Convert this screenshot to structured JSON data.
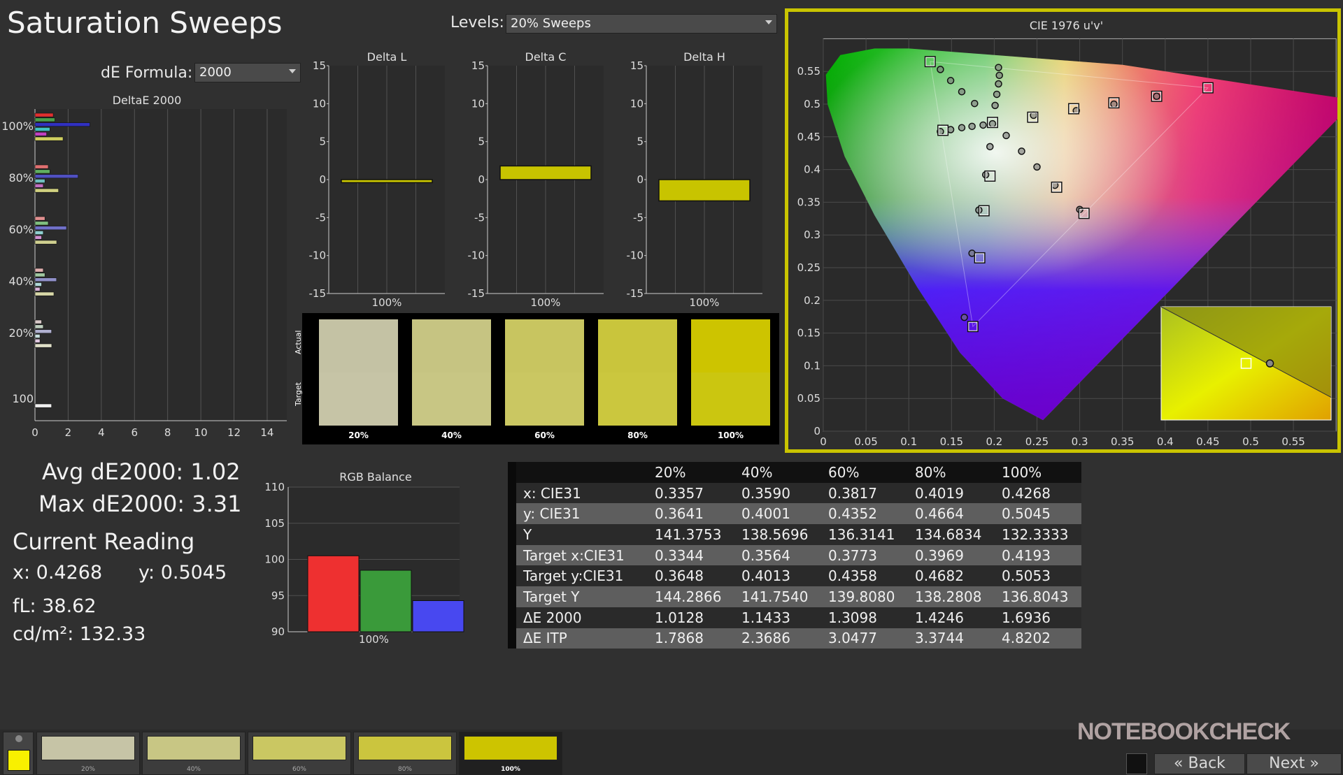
{
  "header": {
    "title": "Saturation Sweeps",
    "levels_label": "Levels:",
    "levels_value": "20% Sweeps",
    "formula_label": "dE Formula:",
    "formula_value": "2000"
  },
  "deltae_chart": {
    "title": "DeltaE 2000",
    "xticks": [
      "0",
      "2",
      "4",
      "6",
      "8",
      "10",
      "12",
      "14"
    ],
    "ylabels": [
      "100%",
      "80%",
      "60%",
      "40%",
      "20%",
      "100"
    ],
    "groups": [
      {
        "label": "100%",
        "bars": [
          {
            "color": "#e03030",
            "v": 1.1
          },
          {
            "color": "#4aa04a",
            "v": 1.2
          },
          {
            "color": "#3030c0",
            "v": 3.31
          },
          {
            "color": "#40c0c0",
            "v": 0.9
          },
          {
            "color": "#c040c0",
            "v": 0.7
          },
          {
            "color": "#d0d060",
            "v": 1.69
          }
        ]
      },
      {
        "label": "80%",
        "bars": [
          {
            "color": "#e07070",
            "v": 0.8
          },
          {
            "color": "#60b060",
            "v": 0.9
          },
          {
            "color": "#5050c0",
            "v": 2.6
          },
          {
            "color": "#70c0c0",
            "v": 0.6
          },
          {
            "color": "#c070c0",
            "v": 0.5
          },
          {
            "color": "#d0d080",
            "v": 1.42
          }
        ]
      },
      {
        "label": "60%",
        "bars": [
          {
            "color": "#e09090",
            "v": 0.6
          },
          {
            "color": "#80c080",
            "v": 0.8
          },
          {
            "color": "#7070c8",
            "v": 1.9
          },
          {
            "color": "#90d0d0",
            "v": 0.5
          },
          {
            "color": "#d090d0",
            "v": 0.4
          },
          {
            "color": "#d0d090",
            "v": 1.31
          }
        ]
      },
      {
        "label": "40%",
        "bars": [
          {
            "color": "#e0b0b0",
            "v": 0.5
          },
          {
            "color": "#a0c8a0",
            "v": 0.6
          },
          {
            "color": "#9090c8",
            "v": 1.3
          },
          {
            "color": "#b0d8d8",
            "v": 0.4
          },
          {
            "color": "#d8b0d8",
            "v": 0.3
          },
          {
            "color": "#d8d8a8",
            "v": 1.14
          }
        ]
      },
      {
        "label": "20%",
        "bars": [
          {
            "color": "#d8c8c8",
            "v": 0.4
          },
          {
            "color": "#c0d0c0",
            "v": 0.5
          },
          {
            "color": "#b0b0d0",
            "v": 1.0
          },
          {
            "color": "#c8e0e0",
            "v": 0.3
          },
          {
            "color": "#e0c8e0",
            "v": 0.3
          },
          {
            "color": "#e0e0c8",
            "v": 1.01
          }
        ]
      },
      {
        "label": "100",
        "bars": [
          {
            "color": "#f0f0f0",
            "v": 1.0
          }
        ]
      }
    ]
  },
  "stats": {
    "avg": "Avg dE2000: 1.02",
    "max": "Max dE2000: 3.31"
  },
  "current_reading": {
    "title": "Current Reading",
    "x": "x: 0.4268",
    "y": "y: 0.5045",
    "fl": "fL: 38.62",
    "cdm2": "cd/m²: 132.33"
  },
  "delta_charts": [
    {
      "title": "Delta L",
      "category": "100%",
      "value": -0.4,
      "yticks": [
        "15",
        "10",
        "5",
        "0",
        "-5",
        "-10",
        "-15"
      ]
    },
    {
      "title": "Delta C",
      "category": "100%",
      "value": 1.8,
      "yticks": [
        "15",
        "10",
        "5",
        "0",
        "-5",
        "-10",
        "-15"
      ]
    },
    {
      "title": "Delta H",
      "category": "100%",
      "value": -2.8,
      "yticks": [
        "15",
        "10",
        "5",
        "0",
        "-5",
        "-10",
        "-15"
      ]
    }
  ],
  "swatches": {
    "actual_label": "Actual",
    "target_label": "Target",
    "items": [
      {
        "label": "20%",
        "actual": "#c4c2a4",
        "target": "#c6c4a6"
      },
      {
        "label": "40%",
        "actual": "#c6c482",
        "target": "#c8c684"
      },
      {
        "label": "60%",
        "actual": "#c8c560",
        "target": "#cac762"
      },
      {
        "label": "80%",
        "actual": "#c9c53c",
        "target": "#cbc73e"
      },
      {
        "label": "100%",
        "actual": "#cdc400",
        "target": "#cbc610"
      }
    ]
  },
  "rgb_balance": {
    "title": "RGB Balance",
    "category": "100%",
    "yticks": [
      "110",
      "105",
      "100",
      "95",
      "90"
    ],
    "bars": [
      {
        "color": "#ee3030",
        "v": 100.5
      },
      {
        "color": "#3a9a3a",
        "v": 98.5
      },
      {
        "color": "#4848f0",
        "v": 94.3
      }
    ]
  },
  "table": {
    "headers": [
      "20%",
      "40%",
      "60%",
      "80%",
      "100%"
    ],
    "rows": [
      {
        "label": "x: CIE31",
        "values": [
          "0.3357",
          "0.3590",
          "0.3817",
          "0.4019",
          "0.4268"
        ]
      },
      {
        "label": "y: CIE31",
        "values": [
          "0.3641",
          "0.4001",
          "0.4352",
          "0.4664",
          "0.5045"
        ]
      },
      {
        "label": "Y",
        "values": [
          "141.3753",
          "138.5696",
          "136.3141",
          "134.6834",
          "132.3333"
        ]
      },
      {
        "label": "Target x:CIE31",
        "values": [
          "0.3344",
          "0.3564",
          "0.3773",
          "0.3969",
          "0.4193"
        ]
      },
      {
        "label": "Target y:CIE31",
        "values": [
          "0.3648",
          "0.4013",
          "0.4358",
          "0.4682",
          "0.5053"
        ]
      },
      {
        "label": "Target Y",
        "values": [
          "144.2866",
          "141.7540",
          "139.8080",
          "138.2808",
          "136.8043"
        ]
      },
      {
        "label": "ΔE 2000",
        "values": [
          "1.0128",
          "1.1433",
          "1.3098",
          "1.4246",
          "1.6936"
        ]
      },
      {
        "label": "ΔE ITP",
        "values": [
          "1.7868",
          "2.3686",
          "3.0477",
          "3.3744",
          "4.8202"
        ]
      }
    ]
  },
  "cie": {
    "title": "CIE 1976 u'v'",
    "xticks": [
      "0",
      "0.05",
      "0.1",
      "0.15",
      "0.2",
      "0.25",
      "0.3",
      "0.35",
      "0.4",
      "0.45",
      "0.5",
      "0.55"
    ],
    "yticks": [
      "0",
      "0.05",
      "0.1",
      "0.15",
      "0.2",
      "0.25",
      "0.3",
      "0.35",
      "0.4",
      "0.45",
      "0.5",
      "0.55"
    ],
    "targets": [
      [
        0.125,
        0.565
      ],
      [
        0.45,
        0.525
      ],
      [
        0.175,
        0.16
      ],
      [
        0.198,
        0.472
      ],
      [
        0.195,
        0.39
      ],
      [
        0.188,
        0.337
      ],
      [
        0.183,
        0.265
      ],
      [
        0.245,
        0.48
      ],
      [
        0.293,
        0.493
      ],
      [
        0.34,
        0.502
      ],
      [
        0.39,
        0.512
      ],
      [
        0.273,
        0.373
      ],
      [
        0.305,
        0.333
      ],
      [
        0.14,
        0.46
      ]
    ],
    "measured": [
      [
        0.137,
        0.553
      ],
      [
        0.149,
        0.536
      ],
      [
        0.162,
        0.519
      ],
      [
        0.177,
        0.501
      ],
      [
        0.198,
        0.47
      ],
      [
        0.137,
        0.458
      ],
      [
        0.149,
        0.461
      ],
      [
        0.162,
        0.464
      ],
      [
        0.174,
        0.466
      ],
      [
        0.187,
        0.468
      ],
      [
        0.205,
        0.556
      ],
      [
        0.206,
        0.544
      ],
      [
        0.205,
        0.531
      ],
      [
        0.203,
        0.515
      ],
      [
        0.201,
        0.498
      ],
      [
        0.195,
        0.435
      ],
      [
        0.214,
        0.452
      ],
      [
        0.232,
        0.428
      ],
      [
        0.25,
        0.404
      ],
      [
        0.271,
        0.376
      ],
      [
        0.3,
        0.339
      ],
      [
        0.19,
        0.392
      ],
      [
        0.182,
        0.338
      ],
      [
        0.174,
        0.272
      ],
      [
        0.165,
        0.174
      ],
      [
        0.246,
        0.483
      ],
      [
        0.296,
        0.49
      ],
      [
        0.34,
        0.5
      ],
      [
        0.39,
        0.512
      ]
    ],
    "inset": {
      "target": [
        0.5,
        0.5
      ],
      "measured": [
        0.64,
        0.5
      ]
    }
  },
  "thumbs": [
    {
      "label": "20%",
      "color": "#c6c4a6"
    },
    {
      "label": "40%",
      "color": "#c8c684"
    },
    {
      "label": "60%",
      "color": "#cac762"
    },
    {
      "label": "80%",
      "color": "#cbc53e"
    },
    {
      "label": "100%",
      "color": "#cdc400"
    }
  ],
  "nav": {
    "back": "Back",
    "next": "Next",
    "watermark": "NOTEBOOKCHECK",
    "current_color": "#f8f000"
  }
}
